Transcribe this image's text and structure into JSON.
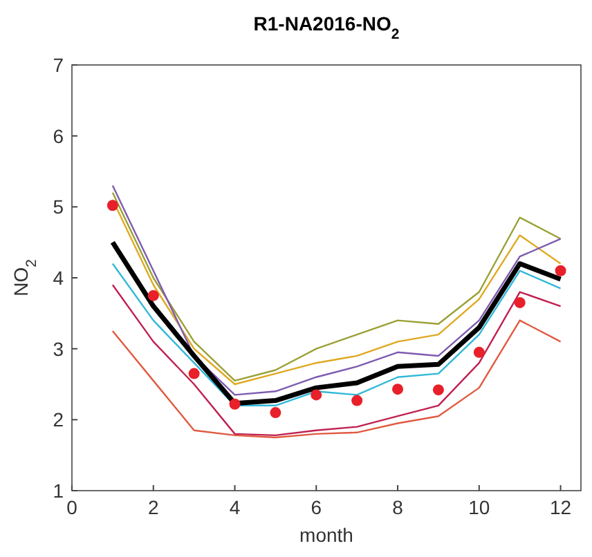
{
  "chart_data": {
    "type": "line",
    "title": "R1-NA2016-NO$_{2}$",
    "xlabel": "month",
    "ylabel": "NO$_{2}$",
    "x": [
      1,
      2,
      3,
      4,
      5,
      6,
      7,
      8,
      9,
      10,
      11,
      12
    ],
    "xlim": [
      0,
      12.5
    ],
    "xticks": [
      0,
      2,
      4,
      6,
      8,
      10,
      12
    ],
    "ylim": [
      1,
      7
    ],
    "yticks": [
      1,
      2,
      3,
      4,
      5,
      6,
      7
    ],
    "grid": false,
    "series": [
      {
        "color": "#9aa034",
        "values": [
          5.2,
          4.0,
          3.1,
          2.55,
          2.7,
          3.0,
          3.2,
          3.4,
          3.35,
          3.8,
          4.85,
          4.55
        ]
      },
      {
        "color": "#e0a820",
        "values": [
          5.1,
          3.9,
          3.0,
          2.5,
          2.65,
          2.8,
          2.9,
          3.1,
          3.2,
          3.7,
          4.6,
          4.2
        ]
      },
      {
        "color": "#7e5bb0",
        "values": [
          5.3,
          4.1,
          2.9,
          2.35,
          2.4,
          2.6,
          2.75,
          2.95,
          2.9,
          3.4,
          4.3,
          4.55
        ]
      },
      {
        "color": "#30b8d8",
        "values": [
          4.2,
          3.4,
          2.8,
          2.2,
          2.2,
          2.4,
          2.35,
          2.6,
          2.65,
          3.2,
          4.1,
          3.85
        ]
      },
      {
        "color": "#c02050",
        "values": [
          3.9,
          3.1,
          2.5,
          1.8,
          1.78,
          1.85,
          1.9,
          2.05,
          2.2,
          2.8,
          3.8,
          3.6
        ]
      },
      {
        "color": "#e05a40",
        "values": [
          3.25,
          2.55,
          1.85,
          1.78,
          1.75,
          1.8,
          1.82,
          1.95,
          2.05,
          2.45,
          3.4,
          3.1
        ]
      },
      {
        "color": "#000000",
        "values": [
          4.5,
          3.6,
          2.9,
          2.23,
          2.27,
          2.45,
          2.52,
          2.75,
          2.78,
          3.3,
          4.2,
          3.98
        ]
      },
      {
        "type": "scatter",
        "marker": "circle",
        "color": "#e8202a",
        "values": [
          5.02,
          3.75,
          2.65,
          2.22,
          2.1,
          2.35,
          2.27,
          2.43,
          2.42,
          2.95,
          3.65,
          4.1
        ]
      }
    ]
  }
}
